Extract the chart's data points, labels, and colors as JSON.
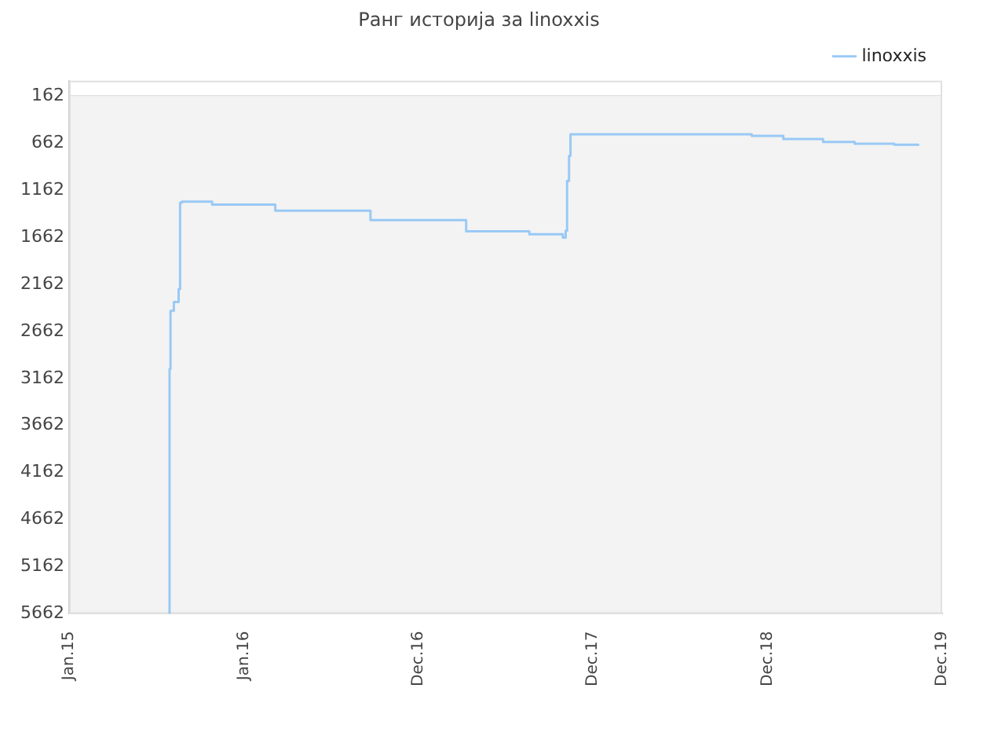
{
  "chart_data": {
    "type": "step",
    "title": "Ранг историја за linoxxis",
    "x": [
      "2015-07-29",
      "2015-07-30",
      "2015-08-01",
      "2015-08-08",
      "2015-08-18",
      "2015-08-21",
      "2015-08-25",
      "2015-10-27",
      "2016-03-07",
      "2016-09-22",
      "2017-04-10",
      "2017-08-20",
      "2017-10-29",
      "2017-11-04",
      "2017-11-07",
      "2017-11-11",
      "2017-11-14",
      "2018-05-26",
      "2018-11-28",
      "2019-02-02",
      "2019-04-26",
      "2019-07-01",
      "2019-09-22",
      "2019-11-11"
    ],
    "series": [
      {
        "name": "linoxxis",
        "color": "#99c9f5",
        "values": [
          5662,
          3062,
          2443,
          2350,
          2213,
          1294,
          1285,
          1315,
          1380,
          1480,
          1600,
          1630,
          1665,
          1594,
          1064,
          798,
          569,
          569,
          586,
          620,
          650,
          670,
          680,
          692
        ]
      }
    ],
    "ylim": [
      5662,
      0
    ],
    "yticks": [
      162,
      662,
      1162,
      1662,
      2162,
      2662,
      3162,
      3662,
      4162,
      4662,
      5162,
      5662
    ],
    "xlim": [
      "2015-01-01",
      "2019-12-31"
    ],
    "xticks": [
      {
        "value": "2015-01-01",
        "label": "Jan.15"
      },
      {
        "value": "2016-01-01",
        "label": "Jan.16"
      },
      {
        "value": "2016-12-31",
        "label": "Dec.16"
      },
      {
        "value": "2017-12-31",
        "label": "Dec.17"
      },
      {
        "value": "2018-12-31",
        "label": "Dec.18"
      },
      {
        "value": "2019-12-31",
        "label": "Dec.19"
      }
    ],
    "grid": "y",
    "legend": "top right",
    "marker": "none"
  }
}
